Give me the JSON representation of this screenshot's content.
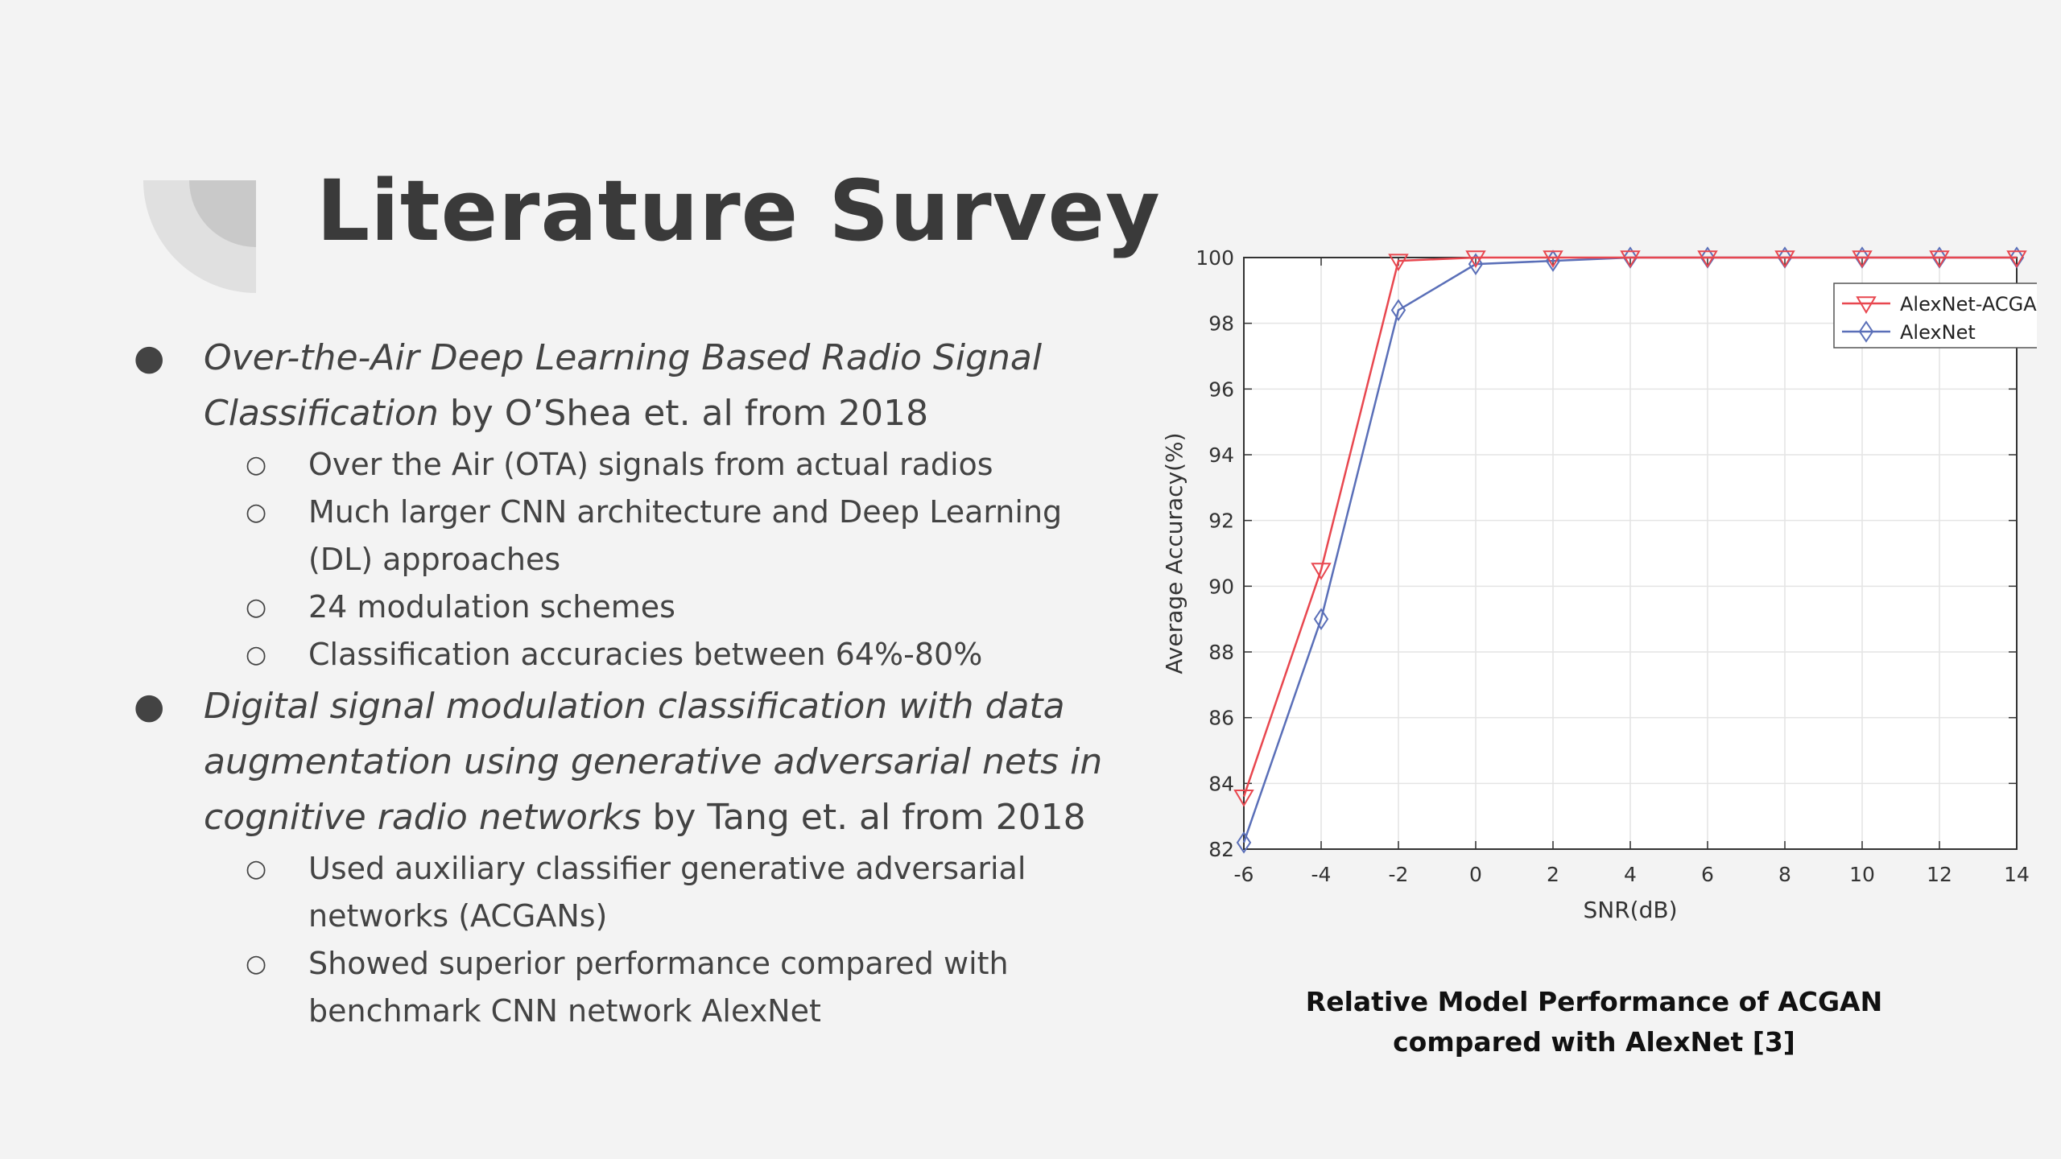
{
  "title": "Literature Survey",
  "items": [
    {
      "title_italic": "Over-the-Air Deep Learning Based Radio Signal Classification",
      "title_rest": " by O’Shea et. al from 2018",
      "subs": [
        "Over the Air (OTA) signals from actual radios",
        "Much larger CNN architecture and Deep Learning (DL) approaches",
        "24 modulation schemes",
        "Classification accuracies between 64%-80%"
      ]
    },
    {
      "title_italic": "Digital signal modulation classification with data augmentation using generative adversarial nets in cognitive radio networks",
      "title_rest": " by Tang et. al from 2018",
      "subs": [
        "Used auxiliary classifier generative adversarial networks (ACGANs)",
        "Showed superior performance compared with benchmark CNN network AlexNet"
      ]
    }
  ],
  "chart_data": {
    "type": "line",
    "xlabel": "SNR(dB)",
    "ylabel": "Average Accuracy(%)",
    "xlim": [
      -6,
      14
    ],
    "ylim": [
      82,
      100
    ],
    "xticks": [
      -6,
      -4,
      -2,
      0,
      2,
      4,
      6,
      8,
      10,
      12,
      14
    ],
    "yticks": [
      82,
      84,
      86,
      88,
      90,
      92,
      94,
      96,
      98,
      100
    ],
    "grid": true,
    "legend_position": "top-right",
    "x": [
      -6,
      -4,
      -2,
      0,
      2,
      4,
      6,
      8,
      10,
      12,
      14
    ],
    "series": [
      {
        "name": "AlexNet-ACGAN",
        "color": "#e8474f",
        "marker": "triangle-down",
        "values": [
          83.6,
          90.5,
          99.9,
          100,
          100,
          100,
          100,
          100,
          100,
          100,
          100
        ]
      },
      {
        "name": "AlexNet",
        "color": "#5a6fb8",
        "marker": "diamond",
        "values": [
          82.2,
          89.0,
          98.4,
          99.8,
          99.9,
          100,
          100,
          100,
          100,
          100,
          100
        ]
      }
    ]
  },
  "caption": "Relative Model Performance of ACGAN compared with AlexNet [3]"
}
